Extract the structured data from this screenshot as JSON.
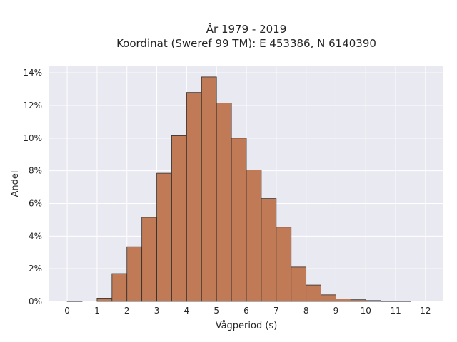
{
  "chart_data": {
    "type": "bar",
    "title_line1": "År 1979 - 2019",
    "title_line2": "Koordinat (Sweref 99 TM): E 453386, N 6140390",
    "xlabel": "Vågperiod (s)",
    "ylabel": "Andel",
    "xlim": [
      -0.6,
      12.6
    ],
    "ylim": [
      0,
      14.4
    ],
    "x_ticks": [
      0,
      1,
      2,
      3,
      4,
      5,
      6,
      7,
      8,
      9,
      10,
      11,
      12
    ],
    "y_ticks": [
      0,
      2,
      4,
      6,
      8,
      10,
      12,
      14
    ],
    "y_tick_labels": [
      "0%",
      "2%",
      "4%",
      "6%",
      "8%",
      "10%",
      "12%",
      "14%"
    ],
    "bin_width": 0.5,
    "bin_starts": [
      0,
      0.5,
      1,
      1.5,
      2,
      2.5,
      3,
      3.5,
      4,
      4.5,
      5,
      5.5,
      6,
      6.5,
      7,
      7.5,
      8,
      8.5,
      9,
      9.5,
      10,
      10.5,
      11,
      11.5
    ],
    "values": [
      0.02,
      0.0,
      0.2,
      1.7,
      3.35,
      5.15,
      7.85,
      10.15,
      12.8,
      13.75,
      12.15,
      10.0,
      8.05,
      6.3,
      4.55,
      2.1,
      1.0,
      0.4,
      0.15,
      0.1,
      0.05,
      0.02,
      0.02,
      0.0
    ],
    "bar_color": "#c07a55",
    "bar_edge_color": "#2e2e2e",
    "plot_background": "#e9e9f1",
    "grid_color": "#ffffff",
    "grid": true
  }
}
